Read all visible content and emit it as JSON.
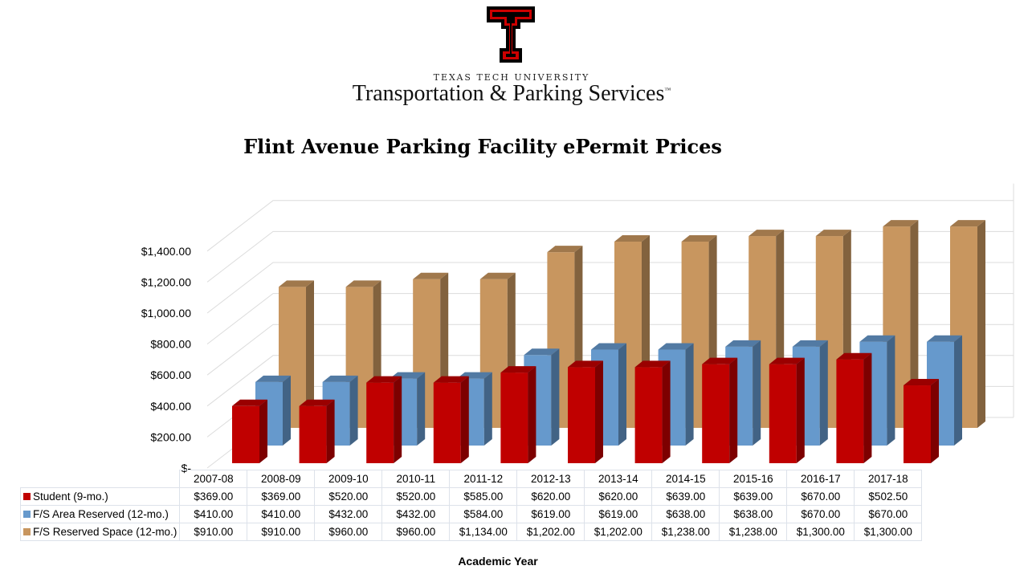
{
  "header": {
    "logo_text": "Double T",
    "university": "TEXAS TECH UNIVERSITY",
    "department": "Transportation & Parking Services",
    "trademark": "™"
  },
  "chart_data": {
    "type": "bar",
    "style": "3d-clustered-column-with-data-table",
    "title": "Flint Avenue Parking Facility ePermit Prices",
    "xlabel": "Academic Year",
    "ylabel": "",
    "ylim": [
      0,
      1400
    ],
    "yticks": [
      "$-",
      "$200.00",
      "$400.00",
      "$600.00",
      "$800.00",
      "$1,000.00",
      "$1,200.00",
      "$1,400.00"
    ],
    "grid": true,
    "categories": [
      "2007-08",
      "2008-09",
      "2009-10",
      "2010-11",
      "2011-12",
      "2012-13",
      "2013-14",
      "2014-15",
      "2015-16",
      "2016-17",
      "2017-18"
    ],
    "series": [
      {
        "name": "Student (9-mo.)",
        "color": "#c00000",
        "values": [
          369,
          369,
          520,
          520,
          585,
          620,
          620,
          639,
          639,
          670,
          502.5
        ],
        "labels": [
          "$369.00",
          "$369.00",
          "$520.00",
          "$520.00",
          "$585.00",
          "$620.00",
          "$620.00",
          "$639.00",
          "$639.00",
          "$670.00",
          "$502.50"
        ]
      },
      {
        "name": "F/S Area Reserved (12-mo.)",
        "color": "#6699cc",
        "values": [
          410,
          410,
          432,
          432,
          584,
          619,
          619,
          638,
          638,
          670,
          670
        ],
        "labels": [
          "$410.00",
          "$410.00",
          "$432.00",
          "$432.00",
          "$584.00",
          "$619.00",
          "$619.00",
          "$638.00",
          "$638.00",
          "$670.00",
          "$670.00"
        ]
      },
      {
        "name": "F/S Reserved Space (12-mo.)",
        "color": "#c8965f",
        "values": [
          910,
          910,
          960,
          960,
          1134,
          1202,
          1202,
          1238,
          1238,
          1300,
          1300
        ],
        "labels": [
          "$910.00",
          "$910.00",
          "$960.00",
          "$960.00",
          "$1,134.00",
          "$1,202.00",
          "$1,202.00",
          "$1,238.00",
          "$1,238.00",
          "$1,300.00",
          "$1,300.00"
        ]
      }
    ]
  }
}
